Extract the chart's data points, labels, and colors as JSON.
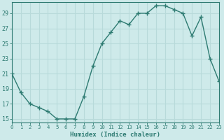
{
  "x": [
    0,
    1,
    2,
    3,
    4,
    5,
    6,
    7,
    8,
    9,
    10,
    11,
    12,
    13,
    14,
    15,
    16,
    17,
    18,
    19,
    20,
    21,
    22,
    23
  ],
  "y": [
    21,
    18.5,
    17,
    16.5,
    16,
    15,
    15,
    15,
    18,
    22,
    25,
    26.5,
    28,
    27.5,
    29,
    29,
    30,
    30,
    29.5,
    29,
    26,
    28.5,
    23,
    20
  ],
  "xlabel": "Humidex (Indice chaleur)",
  "xlim": [
    0,
    23
  ],
  "ylim": [
    14.5,
    30.5
  ],
  "yticks": [
    15,
    17,
    19,
    21,
    23,
    25,
    27,
    29
  ],
  "xticks": [
    0,
    1,
    2,
    3,
    4,
    5,
    6,
    7,
    8,
    9,
    10,
    11,
    12,
    13,
    14,
    15,
    16,
    17,
    18,
    19,
    20,
    21,
    22,
    23
  ],
  "line_color": "#2e7b72",
  "bg_color": "#ceeaea",
  "grid_color": "#b8dada",
  "spine_color": "#2e7b72",
  "tick_label_color": "#2e7b72",
  "xlabel_color": "#2e7b72"
}
